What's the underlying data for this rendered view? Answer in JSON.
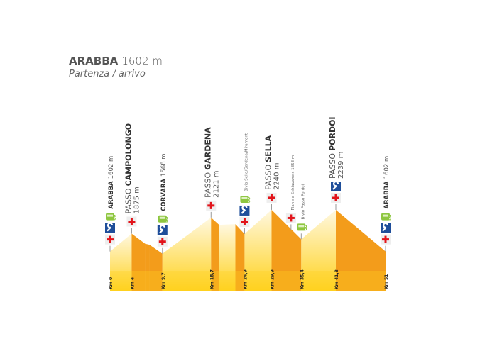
{
  "header": {
    "name": "ARABBA",
    "elevation": "1602 m",
    "subtitle": "Partenza / arrivo"
  },
  "colors": {
    "descent": "#F39C1B",
    "ascent_top": "#FFF8E0",
    "ascent_bottom": "#FFD21F",
    "base": "#FFD21F",
    "cross": "#E2141B",
    "wrench_bg": "#1F4E9A",
    "bus": "#8DC63F",
    "tick": "#999999"
  },
  "profile": [
    {
      "km": 0,
      "ele": 1602
    },
    {
      "km": 4,
      "ele": 1875
    },
    {
      "km": 6.5,
      "ele": 1720
    },
    {
      "km": 7.3,
      "ele": 1705
    },
    {
      "km": 9.7,
      "ele": 1568
    },
    {
      "km": 18.7,
      "ele": 2121
    },
    {
      "km": 20.2,
      "ele": 2010
    },
    {
      "km": 23.2,
      "ele": 2020
    },
    {
      "km": 24.9,
      "ele": 1870
    },
    {
      "km": 29.9,
      "ele": 2240
    },
    {
      "km": 35.4,
      "ele": 1790
    },
    {
      "km": 41.8,
      "ele": 2239
    },
    {
      "km": 51,
      "ele": 1602
    }
  ],
  "km_labels": [
    {
      "km": 0,
      "label": "Km 0"
    },
    {
      "km": 4,
      "label": "Km 4"
    },
    {
      "km": 9.7,
      "label": "Km 9,7"
    },
    {
      "km": 18.7,
      "label": "Km 18,7"
    },
    {
      "km": 24.9,
      "label": "Km 24,9"
    },
    {
      "km": 29.9,
      "label": "Km 29,9"
    },
    {
      "km": 35.4,
      "label": "Km 35,4"
    },
    {
      "km": 41.8,
      "label": "Km 41,8"
    },
    {
      "km": 51,
      "label": "Km 51"
    }
  ],
  "points": [
    {
      "km": 0,
      "ele": 1602,
      "style": "inline",
      "prefix": "",
      "name": "ARABBA",
      "elevation": "1602 m",
      "icons": [
        "first-aid",
        "wrench",
        "bus"
      ]
    },
    {
      "km": 4,
      "ele": 1875,
      "style": "pass",
      "prefix": "PASSO",
      "name": "CAMPOLONGO",
      "elevation": "1875 m",
      "icons": [
        "first-aid"
      ]
    },
    {
      "km": 9.7,
      "ele": 1568,
      "style": "inline",
      "prefix": "",
      "name": "CORVARA",
      "elevation": "1568 m",
      "icons": [
        "first-aid",
        "wrench",
        "bus"
      ]
    },
    {
      "km": 18.7,
      "ele": 2121,
      "style": "pass",
      "prefix": "PASSO",
      "name": "GARDENA",
      "elevation": "2121 m",
      "icons": [
        "first-aid"
      ]
    },
    {
      "km": 24.9,
      "ele": 1870,
      "style": "small",
      "prefix": "",
      "name": "Bivio Sella/Gardena/Miramonti",
      "elevation": "",
      "icons": [
        "first-aid",
        "wrench",
        "bus"
      ]
    },
    {
      "km": 29.9,
      "ele": 2240,
      "style": "pass",
      "prefix": "PASSO",
      "name": "SELLA",
      "elevation": "2240 m",
      "icons": [
        "first-aid"
      ]
    },
    {
      "km": 33.5,
      "ele": 1930,
      "style": "small",
      "prefix": "",
      "name": "Plan de Schiavaneis 1853 m",
      "elevation": "",
      "icons": [
        "first-aid"
      ]
    },
    {
      "km": 35.4,
      "ele": 1790,
      "style": "small",
      "prefix": "",
      "name": "Bivio Passo Pordoi",
      "elevation": "",
      "icons": [
        "bus"
      ]
    },
    {
      "km": 41.8,
      "ele": 2239,
      "style": "pass",
      "prefix": "PASSO",
      "name": "PORDOI",
      "elevation": "2239 m",
      "icons": [
        "first-aid",
        "wrench"
      ]
    },
    {
      "km": 51,
      "ele": 1602,
      "style": "inline",
      "prefix": "",
      "name": "ARABBA",
      "elevation": "1602 m",
      "icons": [
        "first-aid",
        "wrench",
        "bus"
      ]
    }
  ]
}
